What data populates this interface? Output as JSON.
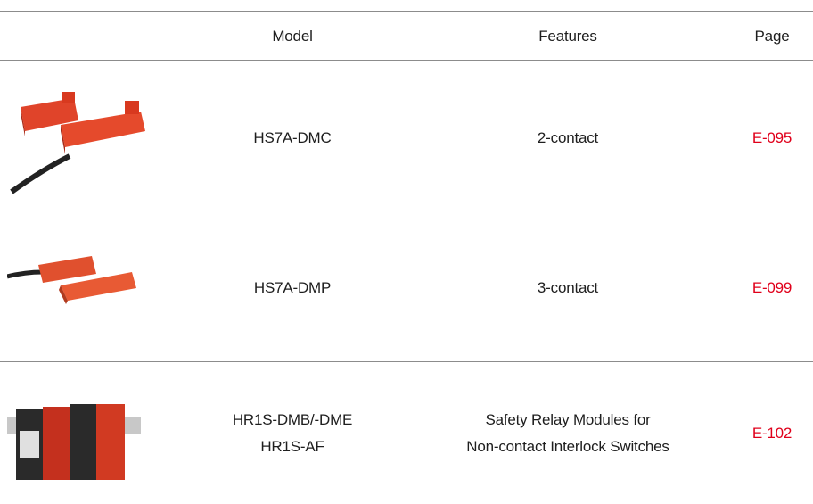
{
  "table": {
    "header": [
      "Model",
      "Features",
      "Page"
    ],
    "rows": [
      {
        "model": [
          "HS7A-DMC"
        ],
        "features": [
          "2-contact"
        ],
        "page": "E-095"
      },
      {
        "model": [
          "HS7A-DMP"
        ],
        "features": [
          "3-contact"
        ],
        "page": "E-099"
      },
      {
        "model": [
          "HR1S-DMB/-DME",
          "HR1S-AF"
        ],
        "features": [
          "Safety Relay Modules for",
          "Non-contact Interlock Switches"
        ],
        "page": "E-102"
      }
    ]
  }
}
